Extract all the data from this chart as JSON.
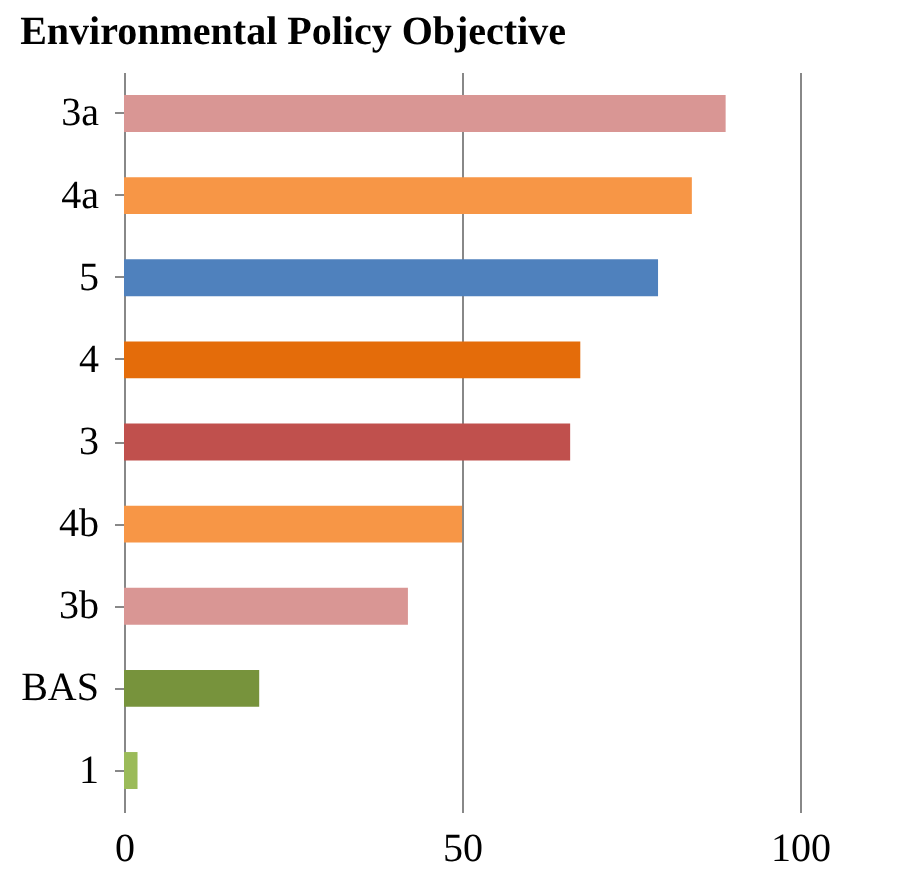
{
  "chart_data": {
    "type": "bar",
    "orientation": "horizontal",
    "title": "Environmental Policy Objective",
    "categories": [
      "3a",
      "4a",
      "5",
      "4",
      "3",
      "4b",
      "3b",
      "BAS",
      "1"
    ],
    "values": [
      89,
      84,
      79,
      67.5,
      66,
      50,
      42,
      20,
      2
    ],
    "colors": [
      "#d99694",
      "#f79646",
      "#4f81bd",
      "#e46c0a",
      "#c0504d",
      "#f79646",
      "#d99694",
      "#77933c",
      "#9bbb59"
    ],
    "xlim": [
      0,
      100
    ],
    "xticks": [
      0,
      50,
      100
    ],
    "grid": "x"
  }
}
